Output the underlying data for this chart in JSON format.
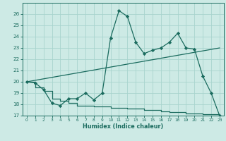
{
  "xlabel": "Humidex (Indice chaleur)",
  "x": [
    0,
    1,
    2,
    3,
    4,
    5,
    6,
    7,
    8,
    9,
    10,
    11,
    12,
    13,
    14,
    15,
    16,
    17,
    18,
    19,
    20,
    21,
    22,
    23
  ],
  "line1": [
    20.0,
    19.9,
    19.3,
    18.1,
    17.9,
    18.5,
    18.5,
    19.0,
    18.4,
    19.0,
    23.9,
    26.3,
    25.8,
    23.5,
    22.5,
    22.8,
    23.0,
    23.5,
    24.3,
    23.0,
    22.9,
    20.5,
    19.0,
    17.0
  ],
  "line2_x": [
    0,
    23
  ],
  "line2_y": [
    20.0,
    23.0
  ],
  "line3_x": [
    0,
    1,
    2,
    3,
    4,
    5,
    6,
    7,
    8,
    9,
    10,
    11,
    12,
    13,
    14,
    15,
    16,
    17,
    18,
    19,
    20,
    21,
    22,
    23
  ],
  "line3_y": [
    20.0,
    19.5,
    19.2,
    18.5,
    18.3,
    18.1,
    17.9,
    17.9,
    17.8,
    17.8,
    17.7,
    17.7,
    17.6,
    17.6,
    17.5,
    17.5,
    17.4,
    17.3,
    17.3,
    17.2,
    17.2,
    17.1,
    17.1,
    17.0
  ],
  "line_color": "#1a6b5e",
  "bg_color": "#cdeae5",
  "grid_color": "#a8d4ce",
  "ylim": [
    17,
    27
  ],
  "xlim": [
    -0.5,
    23.5
  ],
  "yticks": [
    17,
    18,
    19,
    20,
    21,
    22,
    23,
    24,
    25,
    26
  ],
  "xticks": [
    0,
    1,
    2,
    3,
    4,
    5,
    6,
    7,
    8,
    9,
    10,
    11,
    12,
    13,
    14,
    15,
    16,
    17,
    18,
    19,
    20,
    21,
    22,
    23
  ]
}
